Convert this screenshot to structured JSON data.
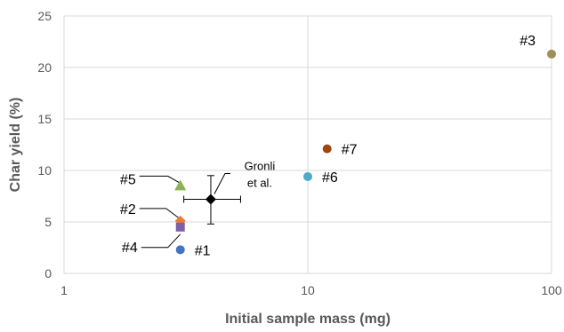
{
  "chart_data": {
    "type": "scatter",
    "title": "",
    "xlabel": "Initial sample mass (mg)",
    "ylabel": "Char yield (%)",
    "xscale": "log",
    "xlim": [
      1,
      100
    ],
    "ylim": [
      0,
      25
    ],
    "xticks": [
      1,
      10,
      100
    ],
    "yticks": [
      0,
      5,
      10,
      15,
      20,
      25
    ],
    "grid": "major gridlines on both axes",
    "legend": "none",
    "series": [
      {
        "label": "#1",
        "x": 3,
        "y": 2.3,
        "marker": "circle",
        "color": "#4472C4"
      },
      {
        "label": "#2",
        "x": 3,
        "y": 5.1,
        "marker": "diamond",
        "color": "#ED7D31"
      },
      {
        "label": "#3",
        "x": 100,
        "y": 21.3,
        "marker": "circle",
        "color": "#9E8F5A"
      },
      {
        "label": "#4",
        "x": 3,
        "y": 4.5,
        "marker": "square",
        "color": "#7F5FA6"
      },
      {
        "label": "#5",
        "x": 3,
        "y": 8.5,
        "marker": "triangle",
        "color": "#8DB255"
      },
      {
        "label": "#6",
        "x": 10,
        "y": 9.4,
        "marker": "circle",
        "color": "#4BACC6"
      },
      {
        "label": "#7",
        "x": 12,
        "y": 12.1,
        "marker": "circle",
        "color": "#A0460E"
      }
    ],
    "reference": {
      "label_lines": [
        "Gronli",
        "et al."
      ],
      "x": 4,
      "y": 7.2,
      "x_error": [
        3.1,
        5.3
      ],
      "y_error": [
        4.8,
        9.5
      ],
      "marker": "diamond",
      "color": "#000000"
    },
    "colors": {
      "grid": "#D9D9D9",
      "axis_text": "#595959",
      "leader_line": "#000000"
    }
  }
}
